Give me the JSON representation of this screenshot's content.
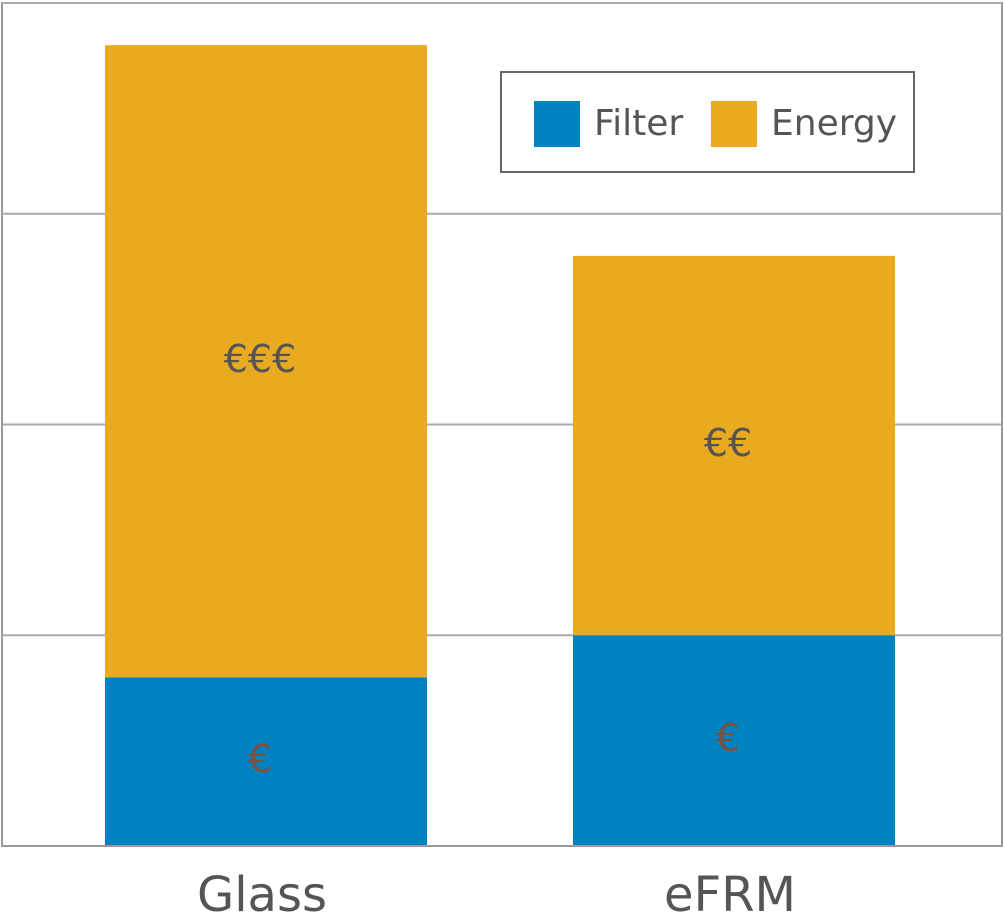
{
  "chart_data": {
    "type": "stacked_bar",
    "categories": [
      "Glass",
      "eFRM"
    ],
    "series": [
      {
        "name": "Filter",
        "color": "#0081c0",
        "values": [
          0.8,
          1.0
        ],
        "value_labels": [
          "€",
          "€"
        ]
      },
      {
        "name": "Energy",
        "color": "#eaaa20",
        "values": [
          3.0,
          1.8
        ],
        "value_labels": [
          "€€€",
          "€€"
        ]
      }
    ],
    "ylim": [
      0,
      4
    ],
    "yticks": [
      0,
      1,
      2,
      3,
      4
    ],
    "grid": true,
    "legend": "upper right"
  }
}
